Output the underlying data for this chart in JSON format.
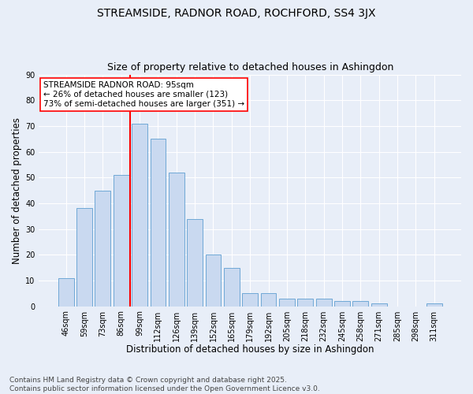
{
  "title_line1": "STREAMSIDE, RADNOR ROAD, ROCHFORD, SS4 3JX",
  "title_line2": "Size of property relative to detached houses in Ashingdon",
  "xlabel": "Distribution of detached houses by size in Ashingdon",
  "ylabel": "Number of detached properties",
  "categories": [
    "46sqm",
    "59sqm",
    "73sqm",
    "86sqm",
    "99sqm",
    "112sqm",
    "126sqm",
    "139sqm",
    "152sqm",
    "165sqm",
    "179sqm",
    "192sqm",
    "205sqm",
    "218sqm",
    "232sqm",
    "245sqm",
    "258sqm",
    "271sqm",
    "285sqm",
    "298sqm",
    "311sqm"
  ],
  "values": [
    11,
    38,
    45,
    51,
    71,
    65,
    52,
    34,
    20,
    15,
    5,
    5,
    3,
    3,
    3,
    2,
    2,
    1,
    0,
    0,
    1
  ],
  "bar_color": "#c9d9f0",
  "bar_edge_color": "#6fa8d6",
  "vline_index": 3.5,
  "vline_color": "red",
  "annotation_text": "STREAMSIDE RADNOR ROAD: 95sqm\n← 26% of detached houses are smaller (123)\n73% of semi-detached houses are larger (351) →",
  "annotation_box_color": "white",
  "annotation_box_edge": "red",
  "ylim": [
    0,
    90
  ],
  "yticks": [
    0,
    10,
    20,
    30,
    40,
    50,
    60,
    70,
    80,
    90
  ],
  "bg_color": "#e8eef8",
  "plot_bg_color": "#e8eef8",
  "footer": "Contains HM Land Registry data © Crown copyright and database right 2025.\nContains public sector information licensed under the Open Government Licence v3.0.",
  "grid_color": "white",
  "title_fontsize": 10,
  "subtitle_fontsize": 9,
  "tick_fontsize": 7,
  "label_fontsize": 8.5,
  "footer_fontsize": 6.5,
  "annotation_fontsize": 7.5
}
